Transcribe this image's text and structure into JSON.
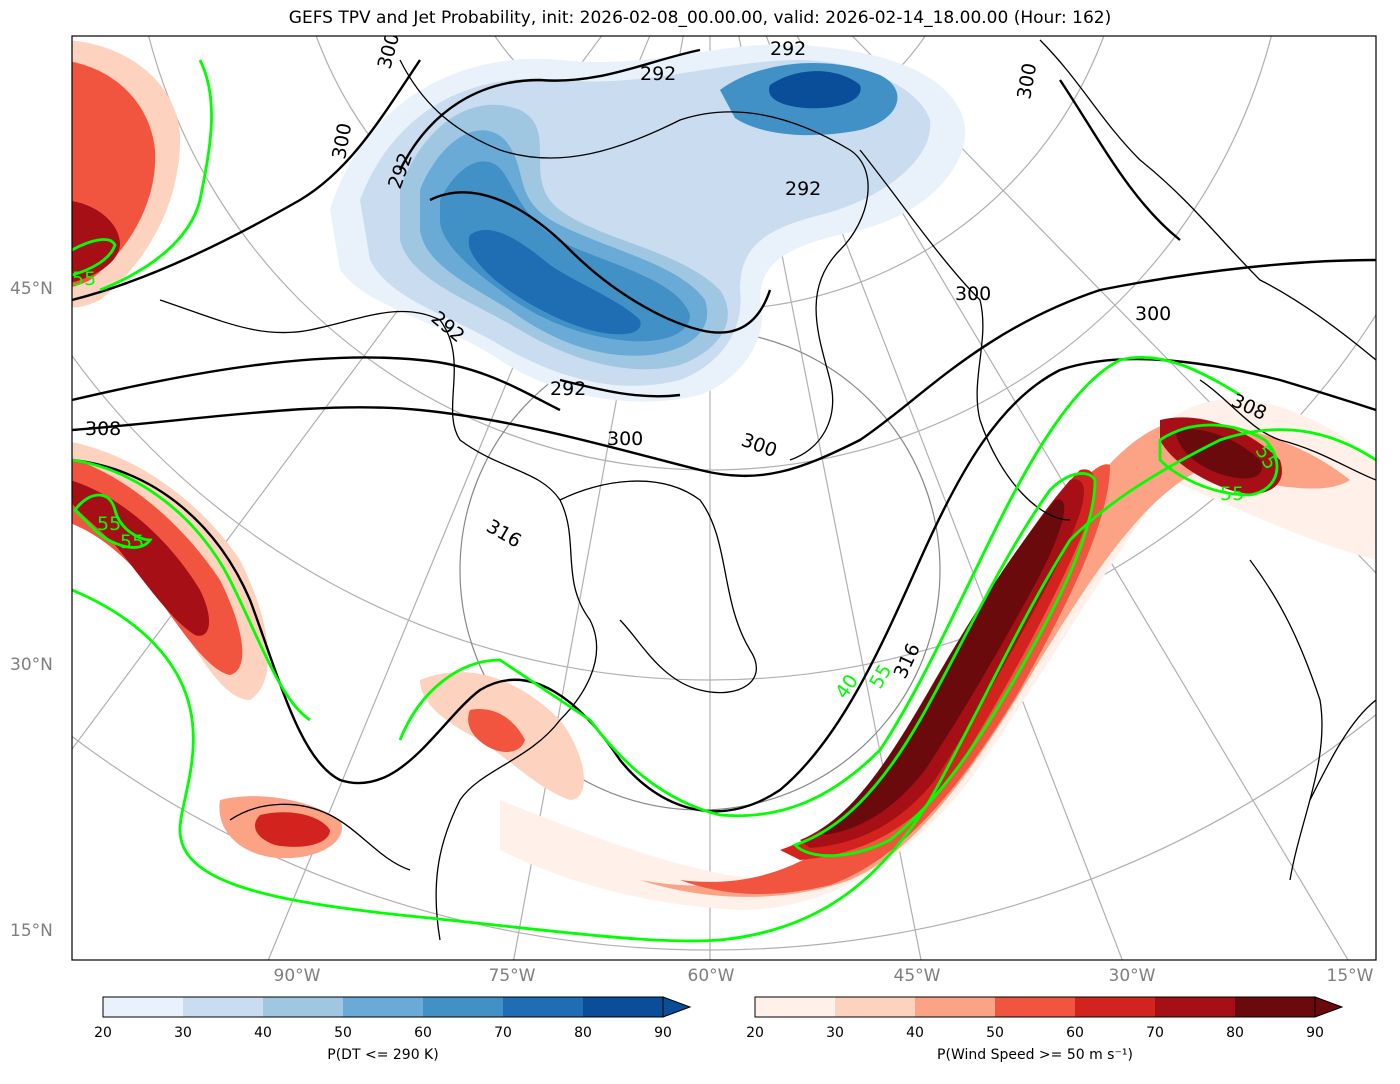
{
  "title": "GEFS TPV and Jet Probability, init: 2026-02-08_00.00.00, valid: 2026-02-14_18.00.00 (Hour: 162)",
  "lat_labels": [
    "45°N",
    "30°N",
    "15°N"
  ],
  "lon_labels": [
    "90°W",
    "75°W",
    "60°W",
    "45°W",
    "30°W",
    "15°W"
  ],
  "contour_labels": {
    "theta": [
      "292",
      "292",
      "292",
      "292",
      "292",
      "292",
      "300",
      "300",
      "300",
      "300",
      "300",
      "300",
      "300",
      "308",
      "308",
      "316",
      "316"
    ],
    "wind": [
      "55",
      "55",
      "55",
      "55",
      "55",
      "40",
      "55"
    ]
  },
  "colorbar_left": {
    "label": "P(DT <= 290 K)",
    "ticks": [
      "20",
      "30",
      "40",
      "50",
      "60",
      "70",
      "80",
      "90"
    ],
    "colors": [
      "#e9f2fa",
      "#c9dcf0",
      "#9fc7e2",
      "#6aaad6",
      "#4190c6",
      "#1f6eb3",
      "#0a4d99"
    ]
  },
  "colorbar_right": {
    "label": "P(Wind Speed >= 50 m s⁻¹)",
    "ticks": [
      "20",
      "30",
      "40",
      "50",
      "60",
      "70",
      "80",
      "90"
    ],
    "colors": [
      "#fff0ea",
      "#fdd2bf",
      "#fca385",
      "#f2553f",
      "#d3231f",
      "#a50f15",
      "#6b0a0d"
    ]
  },
  "colors": {
    "jet_contour": "#00ff00",
    "theta_contour": "#000000",
    "coast": "#000000",
    "grid": "#b0b0b0"
  }
}
